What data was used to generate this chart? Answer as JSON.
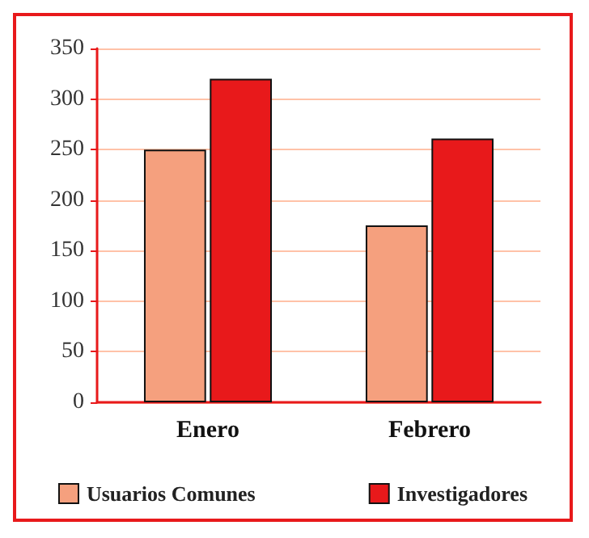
{
  "chart_data": {
    "type": "bar",
    "categories": [
      "Enero",
      "Febrero"
    ],
    "series": [
      {
        "name": "Usuarios Comunes",
        "color": "#f5a07e",
        "values": [
          250,
          175
        ]
      },
      {
        "name": "Investigadores",
        "color": "#e8191b",
        "values": [
          320,
          261
        ]
      }
    ],
    "ylim": [
      0,
      350
    ],
    "yticks": [
      0,
      50,
      100,
      150,
      200,
      250,
      300,
      350
    ],
    "grid": "y",
    "legend": "bottom"
  }
}
